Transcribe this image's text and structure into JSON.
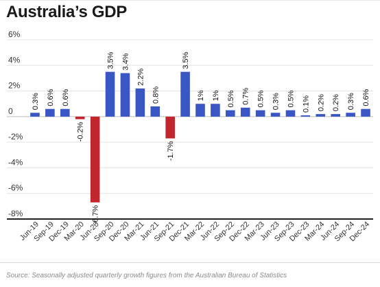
{
  "chart_data": {
    "type": "bar",
    "title": "Australia’s GDP",
    "xlabel": "",
    "ylabel": "",
    "ylim": [
      -8,
      6
    ],
    "yticks": [
      6,
      4,
      2,
      0,
      -2,
      -4,
      -6,
      -8
    ],
    "ytick_labels": [
      "6%",
      "4%",
      "2%",
      "0",
      "-2%",
      "-4%",
      "-6%",
      "-8%"
    ],
    "grid": true,
    "legend": "none",
    "categories": [
      "Jun-19",
      "Sep-19",
      "Dec-19",
      "Mar-20",
      "Jun-20",
      "Sep-20",
      "Dec-20",
      "Mar-21",
      "Jun-21",
      "Sep-21",
      "Dec-21",
      "Mar-22",
      "Jun-22",
      "Sep-22",
      "Dec-22",
      "Mar-23",
      "Jun-23",
      "Sep-23",
      "Dec-23",
      "Mar-24",
      "Jun-24",
      "Sep-24",
      "Dec-24"
    ],
    "values": [
      0.3,
      0.6,
      0.6,
      -0.2,
      -6.7,
      3.5,
      3.4,
      2.2,
      0.8,
      -1.7,
      3.5,
      1,
      1,
      0.5,
      0.7,
      0.5,
      0.3,
      0.5,
      0.1,
      0.2,
      0.2,
      0.3,
      0.6
    ],
    "data_labels": [
      "0.3%",
      "0.6%",
      "0.6%",
      "-0.2%",
      "-6.7%",
      "3.5%",
      "3.4%",
      "2.2%",
      "0.8%",
      "-1.7%",
      "3.5%",
      "1%",
      "1%",
      "0.5%",
      "0.7%",
      "0.5%",
      "0.3%",
      "0.5%",
      "0.1%",
      "0.2%",
      "0.2%",
      "0.3%",
      "0.6%"
    ],
    "colors": {
      "positive": "#3a55c4",
      "negative": "#c0262c",
      "grid": "#e3e3e3",
      "axis": "#222222",
      "text": "#333333"
    }
  },
  "source": "Source: Seasonally adjusted quarterly growth figures from the Australian Bureau of Statistics"
}
